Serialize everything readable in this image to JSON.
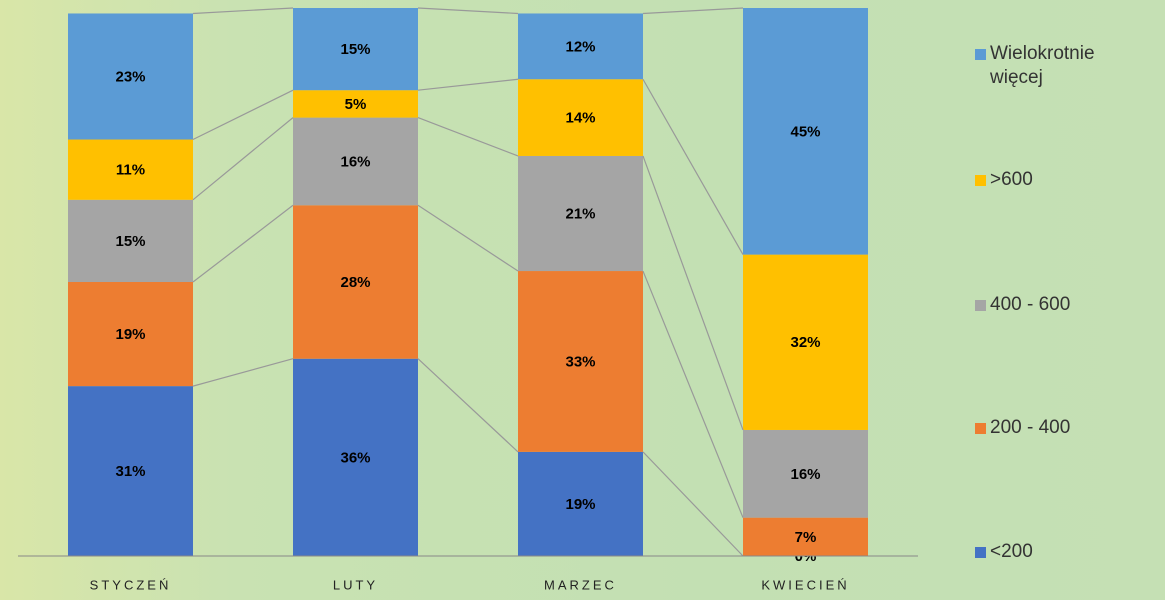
{
  "chart_data": {
    "type": "stacked_bar",
    "categories": [
      "STYCZEŃ",
      "LUTY",
      "MARZEC",
      "KWIECIEŃ"
    ],
    "series": [
      {
        "name": "<200",
        "color": "#4472c4",
        "values": [
          31,
          36,
          19,
          0
        ]
      },
      {
        "name": "200 - 400",
        "color": "#ed7d31",
        "values": [
          19,
          28,
          33,
          7
        ]
      },
      {
        "name": "400 - 600",
        "color": "#a5a5a5",
        "values": [
          15,
          16,
          21,
          16
        ]
      },
      {
        "name": ">600",
        "color": "#ffc000",
        "values": [
          11,
          5,
          14,
          32
        ]
      },
      {
        "name": "Wielokrotnie więcej",
        "color": "#5b9bd5",
        "values": [
          23,
          15,
          12,
          45
        ]
      }
    ],
    "value_labels": [
      [
        "31%",
        "36%",
        "19%",
        "0%"
      ],
      [
        "19%",
        "28%",
        "33%",
        "7%"
      ],
      [
        "15%",
        "16%",
        "21%",
        "16%"
      ],
      [
        "11%",
        "5%",
        "14%",
        "32%"
      ],
      [
        "23%",
        "15%",
        "12%",
        "45%"
      ]
    ],
    "ylim": [
      0,
      100
    ],
    "legend": "right"
  }
}
